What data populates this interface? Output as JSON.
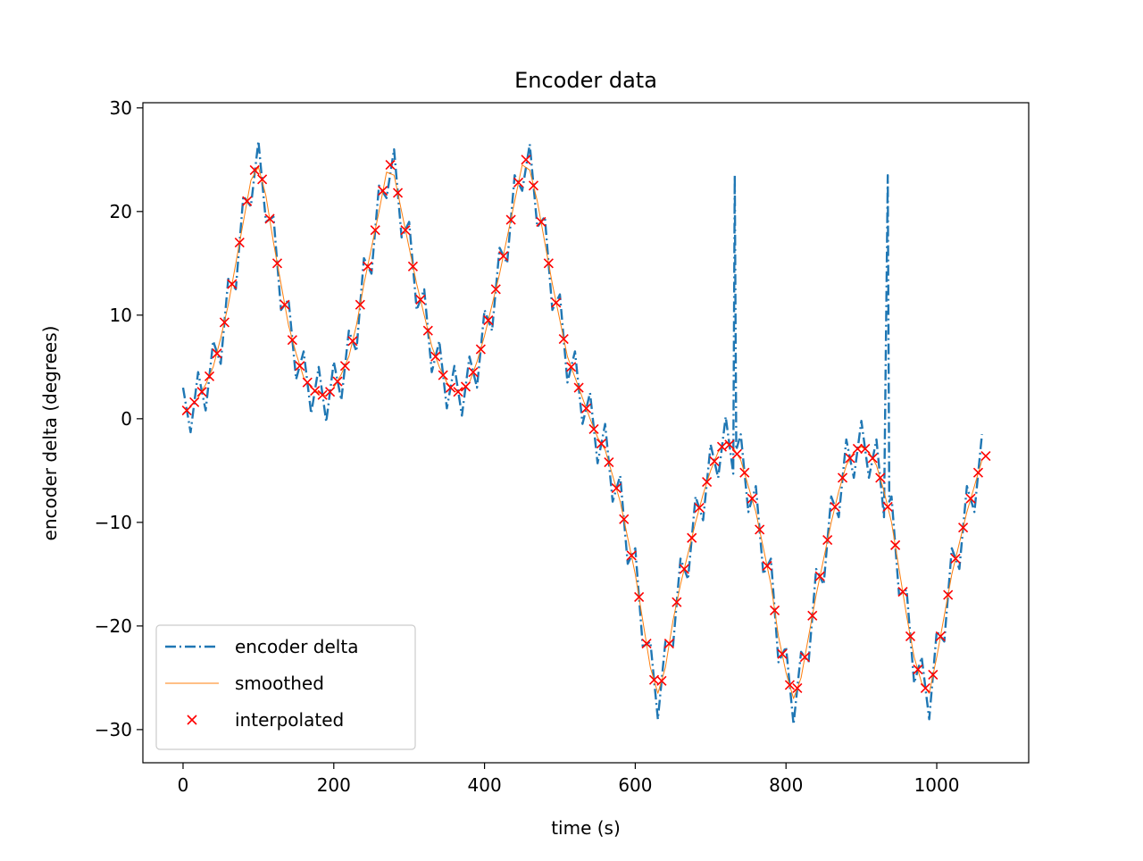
{
  "chart_data": {
    "type": "line",
    "title": "Encoder data",
    "x_label": "time (s)",
    "y_label": "encoder delta (degrees)",
    "xlim": [
      -53.3,
      1122
    ],
    "ylim": [
      -33.2,
      30.5
    ],
    "xticks": [
      0,
      200,
      400,
      600,
      800,
      1000
    ],
    "yticks": [
      {
        "value": -30,
        "label": "−30"
      },
      {
        "value": -20,
        "label": "−20"
      },
      {
        "value": -10,
        "label": "−10"
      },
      0,
      10,
      20,
      30
    ],
    "legend": "lower left",
    "series": [
      {
        "name": "encoder delta",
        "color": "#1f77b4",
        "style": "dashdot",
        "x": [
          0,
          10,
          20,
          30,
          40,
          50,
          60,
          70,
          80,
          90,
          100,
          110,
          120,
          130,
          140,
          150,
          160,
          170,
          180,
          190,
          200,
          210,
          220,
          230,
          240,
          250,
          260,
          270,
          280,
          290,
          300,
          310,
          320,
          330,
          340,
          350,
          360,
          370,
          380,
          390,
          400,
          410,
          420,
          430,
          440,
          450,
          460,
          470,
          480,
          490,
          500,
          510,
          520,
          530,
          540,
          550,
          560,
          570,
          580,
          590,
          600,
          610,
          620,
          630,
          640,
          650,
          660,
          670,
          680,
          690,
          700,
          710,
          720,
          730,
          732,
          734,
          740,
          750,
          760,
          770,
          780,
          790,
          800,
          810,
          820,
          830,
          840,
          850,
          860,
          870,
          880,
          890,
          900,
          910,
          920,
          930,
          935,
          937,
          940,
          950,
          960,
          970,
          980,
          990,
          1000,
          1010,
          1020,
          1030,
          1040,
          1050,
          1060
        ],
        "values": [
          3,
          -1.3,
          4.5,
          0.8,
          7.5,
          5.3,
          13.5,
          12.5,
          21.5,
          20.5,
          26.8,
          19,
          19.5,
          10.5,
          11.5,
          3.8,
          6.5,
          0.5,
          5,
          -0.3,
          5.5,
          1.8,
          8.5,
          6.5,
          15.5,
          14,
          22.5,
          21.3,
          26,
          17.5,
          19,
          10.5,
          12.5,
          4.5,
          7.5,
          1,
          5.1,
          0.3,
          6,
          3,
          10.5,
          8.5,
          16.5,
          15,
          23.5,
          22,
          26.5,
          18.5,
          19.5,
          10.5,
          12,
          3.5,
          6.5,
          -0.5,
          2.5,
          -4.3,
          -0.5,
          -8,
          -5.5,
          -14,
          -12.5,
          -22,
          -21.5,
          -29,
          -21.5,
          -22,
          -13.5,
          -15.5,
          -7.5,
          -9.8,
          -2.5,
          -5.7,
          0.2,
          -5.3,
          23.5,
          -3,
          -1.5,
          -9,
          -6.5,
          -15,
          -13.5,
          -23.5,
          -22,
          -29.5,
          -22.5,
          -23.5,
          -14.5,
          -16,
          -7.5,
          -9.5,
          -2,
          -5.7,
          -0.2,
          -5.7,
          -2,
          -9.5,
          23.5,
          -8,
          -7.5,
          -17,
          -16.5,
          -25.5,
          -23,
          -29,
          -20.5,
          -21.5,
          -12.5,
          -14.5,
          -6.5,
          -9,
          -1.5
        ]
      },
      {
        "name": "smoothed",
        "color": "#ff7f0e",
        "style": "solid",
        "x": [
          0,
          10,
          20,
          30,
          40,
          50,
          60,
          70,
          80,
          90,
          100,
          110,
          120,
          130,
          140,
          150,
          160,
          170,
          180,
          190,
          200,
          210,
          220,
          230,
          240,
          250,
          260,
          270,
          280,
          290,
          300,
          310,
          320,
          330,
          340,
          350,
          360,
          370,
          380,
          390,
          400,
          410,
          420,
          430,
          440,
          450,
          460,
          470,
          480,
          490,
          500,
          510,
          520,
          530,
          540,
          550,
          560,
          570,
          580,
          590,
          600,
          610,
          620,
          630,
          640,
          650,
          660,
          670,
          680,
          690,
          700,
          710,
          720,
          730,
          740,
          750,
          760,
          770,
          780,
          790,
          800,
          810,
          820,
          830,
          840,
          850,
          860,
          870,
          880,
          890,
          900,
          910,
          920,
          930,
          940,
          950,
          960,
          970,
          980,
          990,
          1000,
          1010,
          1020,
          1030,
          1040,
          1050,
          1060
        ],
        "values": [
          0.5,
          1.2,
          2,
          3.3,
          5,
          7.8,
          11,
          15,
          19,
          23,
          24.3,
          21.5,
          17,
          13,
          9,
          6.3,
          4,
          3,
          2.5,
          2.2,
          3,
          4.3,
          6,
          9,
          13,
          16.5,
          20,
          23.8,
          23.5,
          20,
          16.5,
          13,
          10,
          7,
          5,
          3.5,
          2.6,
          2.8,
          3.5,
          5.5,
          8,
          11,
          14,
          17.5,
          21,
          24.5,
          24,
          21,
          17,
          13,
          9.5,
          6,
          4,
          2,
          0,
          -1.8,
          -3,
          -5.5,
          -8,
          -11.5,
          -15,
          -19.5,
          -24,
          -26.5,
          -24,
          -19.5,
          -16,
          -13,
          -10,
          -7.3,
          -5,
          -3.2,
          -2.3,
          -2.8,
          -4,
          -6.5,
          -9,
          -12.5,
          -16,
          -21,
          -24.5,
          -27,
          -25,
          -21,
          -17,
          -13.5,
          -10,
          -7,
          -4.5,
          -3.2,
          -2.7,
          -3.2,
          -4.5,
          -7,
          -10,
          -14.5,
          -19,
          -23,
          -25.5,
          -26.5,
          -23,
          -19,
          -15,
          -12,
          -9,
          -6.5,
          -4
        ]
      },
      {
        "name": "interpolated",
        "color": "#ff0000",
        "style": "none",
        "marker": "x",
        "x": [
          5,
          15,
          25,
          35,
          45,
          55,
          65,
          75,
          85,
          95,
          105,
          115,
          125,
          135,
          145,
          155,
          165,
          175,
          185,
          195,
          205,
          215,
          225,
          235,
          245,
          255,
          265,
          275,
          285,
          295,
          305,
          315,
          325,
          335,
          345,
          355,
          365,
          375,
          385,
          395,
          405,
          415,
          425,
          435,
          445,
          455,
          465,
          475,
          485,
          495,
          505,
          515,
          525,
          535,
          545,
          555,
          565,
          575,
          585,
          595,
          605,
          615,
          625,
          635,
          645,
          655,
          665,
          675,
          685,
          695,
          705,
          715,
          725,
          735,
          745,
          755,
          765,
          775,
          785,
          795,
          805,
          815,
          825,
          835,
          845,
          855,
          865,
          875,
          885,
          895,
          905,
          915,
          925,
          935,
          945,
          955,
          965,
          975,
          985,
          995,
          1005,
          1015,
          1025,
          1035,
          1045,
          1055,
          1065
        ],
        "values": [
          0.8,
          1.6,
          2.6,
          4.1,
          6.3,
          9.3,
          13,
          17,
          21,
          24,
          23.1,
          19.3,
          15,
          11,
          7.6,
          5.1,
          3.5,
          2.7,
          2.3,
          2.6,
          3.6,
          5.1,
          7.5,
          11,
          14.7,
          18.2,
          22,
          24.5,
          21.8,
          18.2,
          14.7,
          11.5,
          8.5,
          6,
          4.2,
          3,
          2.6,
          3.1,
          4.5,
          6.7,
          9.5,
          12.5,
          15.7,
          19.2,
          22.8,
          25,
          22.5,
          19,
          15,
          11.2,
          7.7,
          5,
          3,
          1,
          -1,
          -2.4,
          -4.2,
          -6.7,
          -9.7,
          -13.2,
          -17.2,
          -21.7,
          -25.2,
          -25.3,
          -21.7,
          -17.7,
          -14.5,
          -11.5,
          -8.6,
          -6.1,
          -4.1,
          -2.7,
          -2.5,
          -3.4,
          -5.2,
          -7.7,
          -10.7,
          -14.2,
          -18.5,
          -22.7,
          -25.7,
          -26,
          -23,
          -19,
          -15.2,
          -11.7,
          -8.5,
          -5.7,
          -3.8,
          -2.9,
          -2.9,
          -3.8,
          -5.7,
          -8.5,
          -12.2,
          -16.7,
          -21,
          -24.2,
          -26,
          -24.7,
          -21,
          -17,
          -13.5,
          -10.5,
          -7.7,
          -5.2,
          -3.6
        ]
      }
    ]
  }
}
